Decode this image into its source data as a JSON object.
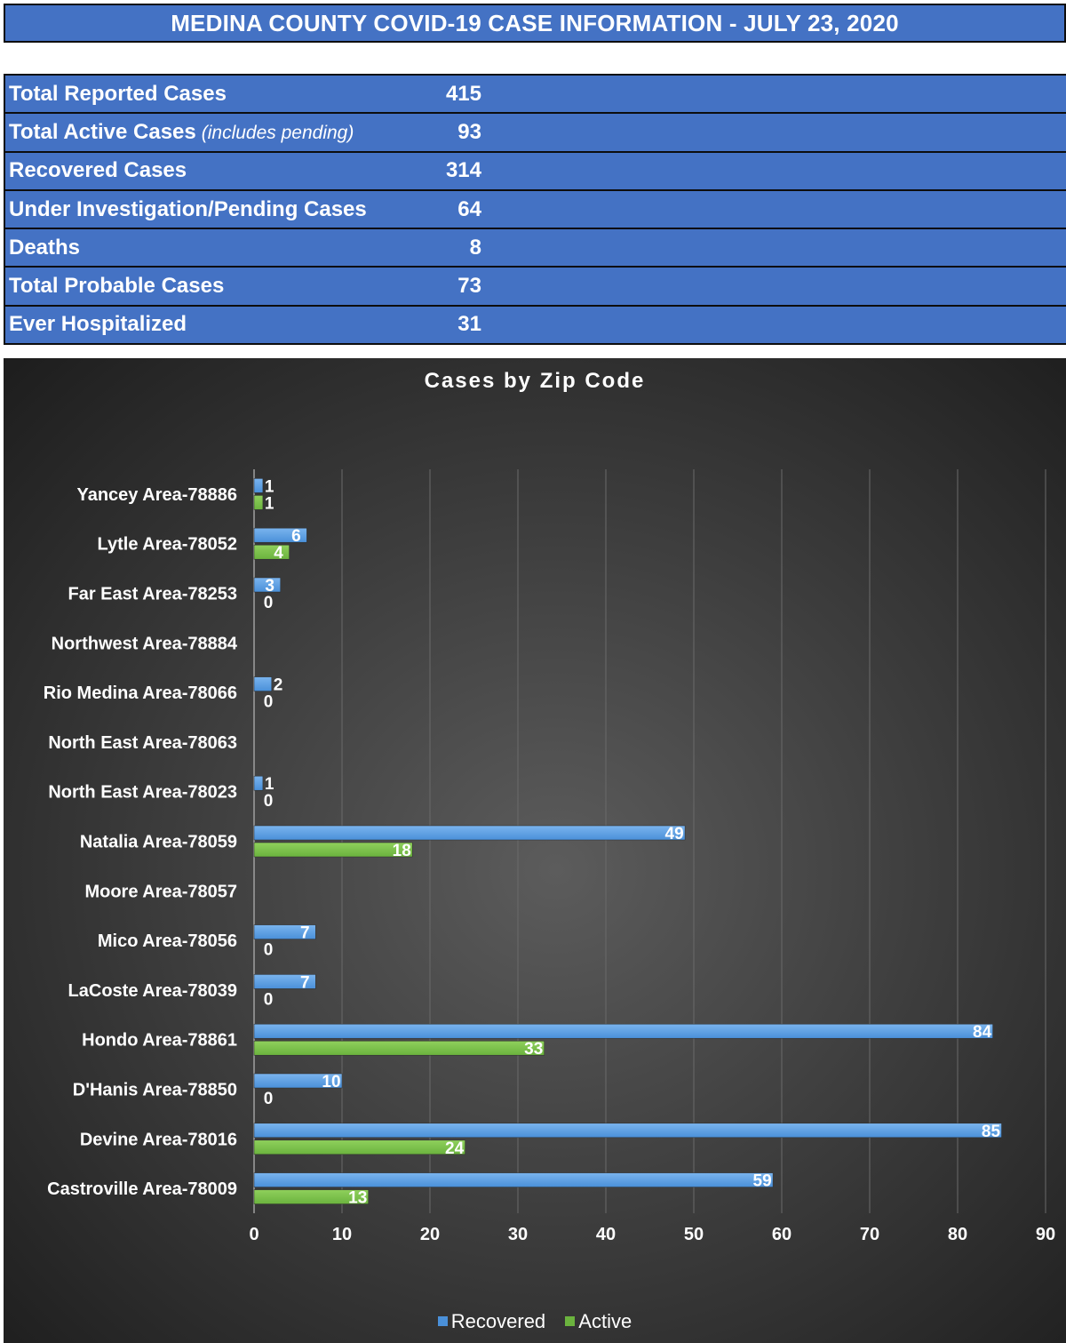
{
  "header": {
    "title": "MEDINA COUNTY COVID-19 CASE INFORMATION - JULY 23, 2020"
  },
  "stats": [
    {
      "label": "Total Reported Cases",
      "note": "",
      "value": "415"
    },
    {
      "label": "Total Active Cases",
      "note": "(includes pending)",
      "value": "93"
    },
    {
      "label": "Recovered Cases",
      "note": "",
      "value": "314"
    },
    {
      "label": "Under Investigation/Pending Cases",
      "note": "",
      "value": "64"
    },
    {
      "label": "Deaths",
      "note": "",
      "value": "8"
    },
    {
      "label": "Total Probable Cases",
      "note": "",
      "value": "73"
    },
    {
      "label": "Ever Hospitalized",
      "note": "",
      "value": "31"
    }
  ],
  "colors": {
    "banner": "#4472c4",
    "recovered": "#4a90d9",
    "active": "#6bb33e",
    "background": "#3c3c3c"
  },
  "chart_data": {
    "type": "bar",
    "orientation": "horizontal",
    "title": "Cases by Zip Code",
    "categories": [
      "Yancey Area-78886",
      "Lytle Area-78052",
      "Far East Area-78253",
      "Northwest Area-78884",
      "Rio Medina Area-78066",
      "North East Area-78063",
      "North East Area-78023",
      "Natalia Area-78059",
      "Moore Area-78057",
      "Mico Area-78056",
      "LaCoste Area-78039",
      "Hondo Area-78861",
      "D'Hanis Area-78850",
      "Devine Area-78016",
      "Castroville Area-78009"
    ],
    "series": [
      {
        "name": "Recovered",
        "values": [
          1,
          6,
          3,
          null,
          2,
          null,
          1,
          49,
          null,
          7,
          7,
          84,
          10,
          85,
          59
        ]
      },
      {
        "name": "Active",
        "values": [
          1,
          4,
          0,
          null,
          0,
          null,
          0,
          18,
          null,
          0,
          0,
          33,
          0,
          24,
          13
        ]
      }
    ],
    "xlim": [
      0,
      90
    ],
    "xticks": [
      0,
      10,
      20,
      30,
      40,
      50,
      60,
      70,
      80,
      90
    ],
    "grid": true,
    "legend": "bottom"
  }
}
